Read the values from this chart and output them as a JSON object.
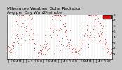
{
  "title": "Milwaukee Weather  Solar Radiation",
  "subtitle": "Avg per Day W/m2/minute",
  "background_color": "#c8c8c8",
  "plot_bg": "#ffffff",
  "ylim": [
    0,
    8
  ],
  "yticks": [
    1,
    2,
    3,
    4,
    5,
    6,
    7,
    8
  ],
  "ytick_labels": [
    "1",
    "2",
    "3",
    "4",
    "5",
    "6",
    "7",
    "8"
  ],
  "dot_color_red": "#ff0000",
  "dot_color_black": "#000000",
  "grid_color": "#888888",
  "title_fontsize": 4.2,
  "tick_fontsize": 3.0,
  "legend_color": "#ff0000",
  "n_years": 3,
  "monthly_avg": [
    1.5,
    2.5,
    3.8,
    5.0,
    6.2,
    6.8,
    6.5,
    5.8,
    4.5,
    3.0,
    1.8,
    1.2
  ]
}
